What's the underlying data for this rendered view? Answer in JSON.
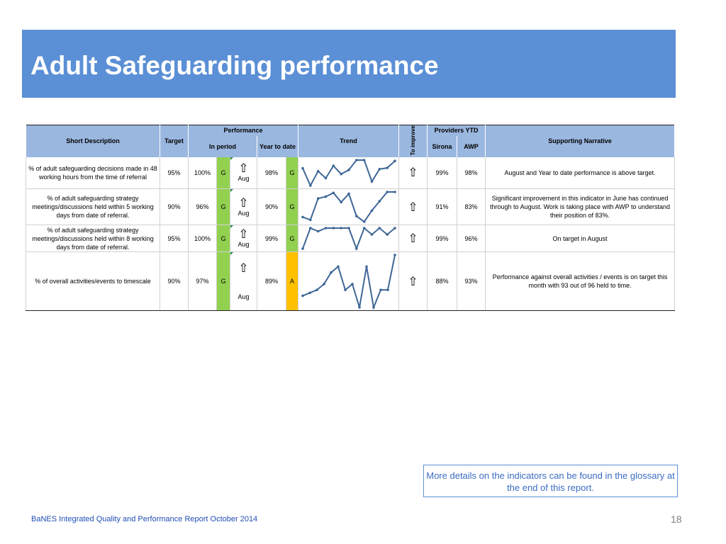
{
  "title": "Adult Safeguarding performance",
  "table": {
    "headers": {
      "short_description": "Short Description",
      "target": "Target",
      "performance": "Performance",
      "in_period": "In period",
      "year_to_date": "Year to date",
      "trend": "Trend",
      "to_improve": "To improve",
      "providers_ytd": "Providers YTD",
      "sirona": "Sirona",
      "awp": "AWP",
      "supporting_narrative": "Supporting Narrative"
    },
    "rows": [
      {
        "description": "% of adult safeguarding decisions made in 48 working hours from the time of referral",
        "target": "95%",
        "in_period": "100%",
        "in_period_rag": "G",
        "arrow": "⇧",
        "period_label": "Aug",
        "ytd": "98%",
        "ytd_rag": "G",
        "trend": [
          62,
          20,
          55,
          38,
          68,
          48,
          58,
          82,
          82,
          30,
          60,
          63,
          80
        ],
        "to_improve": "⇧",
        "sirona": "99%",
        "awp": "98%",
        "narrative": "August and Year to date performance is above target."
      },
      {
        "description": "% of adult safeguarding strategy meetings/discussions held within 5 working days from date of referral.",
        "target": "90%",
        "in_period": "96%",
        "in_period_rag": "G",
        "arrow": "⇧",
        "period_label": "Aug",
        "ytd": "90%",
        "ytd_rag": "G",
        "trend": [
          28,
          22,
          68,
          72,
          80,
          60,
          78,
          30,
          18,
          42,
          62,
          82,
          82
        ],
        "to_improve": "⇧",
        "sirona": "91%",
        "awp": "83%",
        "narrative": "Significant improvement in this indicator in June has continued through to August. Work is taking place with AWP to understand their position of 83%."
      },
      {
        "description": "% of adult safeguarding strategy meetings/discussions held within 8 working days from date of referral.",
        "target": "95%",
        "in_period": "100%",
        "in_period_rag": "G",
        "arrow": "⇧",
        "period_label": "Aug",
        "ytd": "99%",
        "ytd_rag": "G",
        "trend": [
          18,
          82,
          72,
          82,
          82,
          82,
          82,
          18,
          82,
          62,
          82,
          62,
          82
        ],
        "to_improve": "⇧",
        "sirona": "99%",
        "awp": "96%",
        "narrative": "On target in August"
      },
      {
        "description": "% of overall activities/events to timescale",
        "target": "90%",
        "in_period": "97%",
        "in_period_rag": "G",
        "arrow": "⇧",
        "period_label": "Aug",
        "ytd": "89%",
        "ytd_rag": "A",
        "trend": [
          86,
          87,
          88,
          90,
          94,
          96,
          88,
          90,
          82,
          96,
          82,
          88,
          88,
          100
        ],
        "to_improve": "⇧",
        "sirona": "88%",
        "awp": "93%",
        "narrative": "Performance against overall activities / events is on target this month with 93 out of 96 held to time."
      }
    ]
  },
  "note": "More details on the indicators can be found in the glossary at the end of this report.",
  "footer": "BaNES Integrated Quality and Performance Report October 2014",
  "page_number": "18",
  "colors": {
    "title_bg": "#5b8fd6",
    "header_bg": "#9ab7df",
    "rag_green": "#92d050",
    "rag_amber": "#ffc000",
    "trend_line": "#3f6797",
    "footer_text": "#1f4fb5"
  }
}
